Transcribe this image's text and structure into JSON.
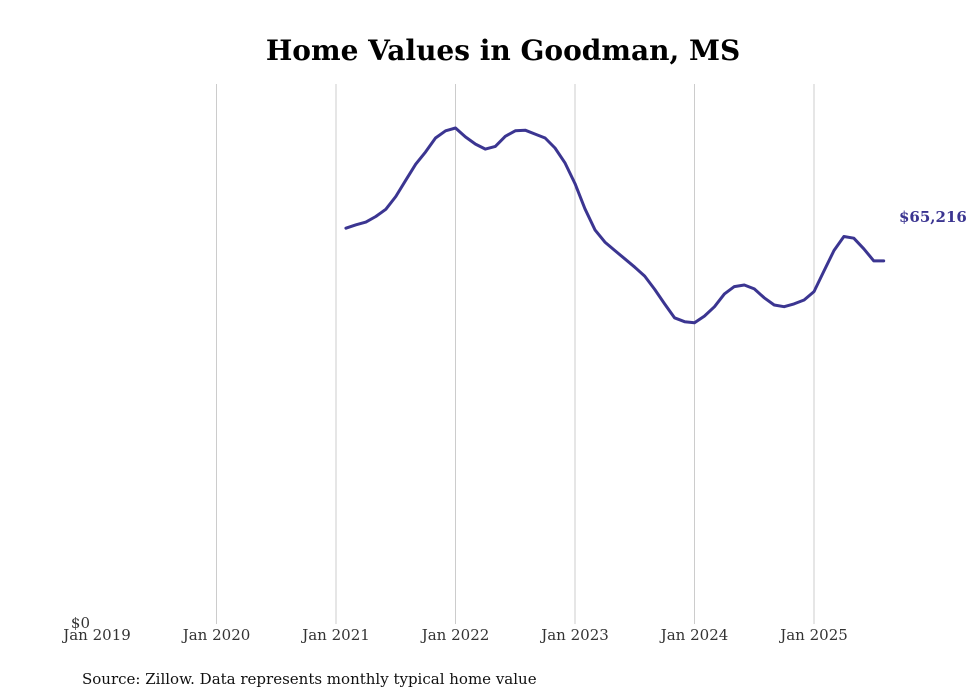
{
  "chart_data": {
    "type": "line",
    "title": "Home Values in Goodman, MS",
    "xlabel": "",
    "ylabel": "",
    "x_ticks": [
      "Jan 2019",
      "Jan 2020",
      "Jan 2021",
      "Jan 2022",
      "Jan 2023",
      "Jan 2024",
      "Jan 2025"
    ],
    "y_ticks": [
      "$0"
    ],
    "ylim": [
      0,
      97000
    ],
    "grid": "vertical",
    "line_color": "#3b3591",
    "series": [
      {
        "name": "Typical home value",
        "x": [
          2021.083,
          2021.167,
          2021.25,
          2021.333,
          2021.417,
          2021.5,
          2021.583,
          2021.667,
          2021.75,
          2021.833,
          2021.917,
          2022.0,
          2022.083,
          2022.167,
          2022.25,
          2022.333,
          2022.417,
          2022.5,
          2022.583,
          2022.667,
          2022.75,
          2022.833,
          2022.917,
          2023.0,
          2023.083,
          2023.167,
          2023.25,
          2023.333,
          2023.417,
          2023.5,
          2023.583,
          2023.667,
          2023.75,
          2023.833,
          2023.917,
          2024.0,
          2024.083,
          2024.167,
          2024.25,
          2024.333,
          2024.417,
          2024.5,
          2024.583,
          2024.667,
          2024.75,
          2024.833,
          2024.917,
          2025.0,
          2025.083,
          2025.167,
          2025.25,
          2025.333,
          2025.417,
          2025.5,
          2025.583
        ],
        "values": [
          71100,
          71700,
          72200,
          73200,
          74500,
          76800,
          79700,
          82600,
          84800,
          87300,
          88600,
          89100,
          87500,
          86200,
          85300,
          85800,
          87600,
          88600,
          88700,
          88000,
          87300,
          85500,
          82800,
          79100,
          74600,
          70800,
          68600,
          67100,
          65600,
          64100,
          62500,
          60100,
          57500,
          55000,
          54300,
          54100,
          55300,
          57000,
          59300,
          60600,
          60900,
          60200,
          58600,
          57300,
          57000,
          57500,
          58200,
          59700,
          63400,
          67100,
          69600,
          69300,
          67400,
          65216,
          65216
        ],
        "end_label": "$65,216"
      }
    ]
  },
  "source": "Source: Zillow. Data represents monthly typical home value"
}
